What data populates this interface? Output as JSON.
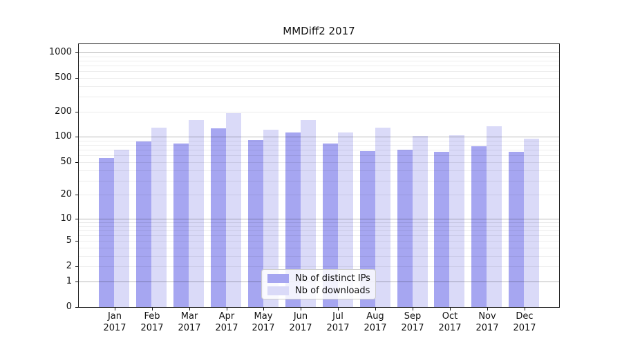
{
  "chart_data": {
    "type": "bar",
    "title": "MMDiff2 2017",
    "year_label": "2017",
    "categories": [
      "Jan",
      "Feb",
      "Mar",
      "Apr",
      "May",
      "Jun",
      "Jul",
      "Aug",
      "Sep",
      "Oct",
      "Nov",
      "Dec"
    ],
    "series": [
      {
        "name": "Nb of distinct IPs",
        "color": "#a6a6f1",
        "values": [
          56,
          89,
          84,
          126,
          91,
          114,
          84,
          68,
          71,
          67,
          78,
          67
        ]
      },
      {
        "name": "Nb of downloads",
        "color": "#dadaf8",
        "values": [
          71,
          129,
          160,
          192,
          123,
          160,
          112,
          129,
          102,
          105,
          133,
          96
        ]
      }
    ],
    "yticks": [
      0,
      1,
      2,
      5,
      10,
      20,
      50,
      100,
      200,
      500,
      1000
    ],
    "ylim": [
      0,
      1250
    ],
    "scale": "log1p",
    "grid": true,
    "legend_position": "bottom-center"
  },
  "colors": {
    "axis": "#1a1a1a",
    "major_grid": "#b5b5b5",
    "minor_grid": "#ececec",
    "background": "#ffffff"
  }
}
